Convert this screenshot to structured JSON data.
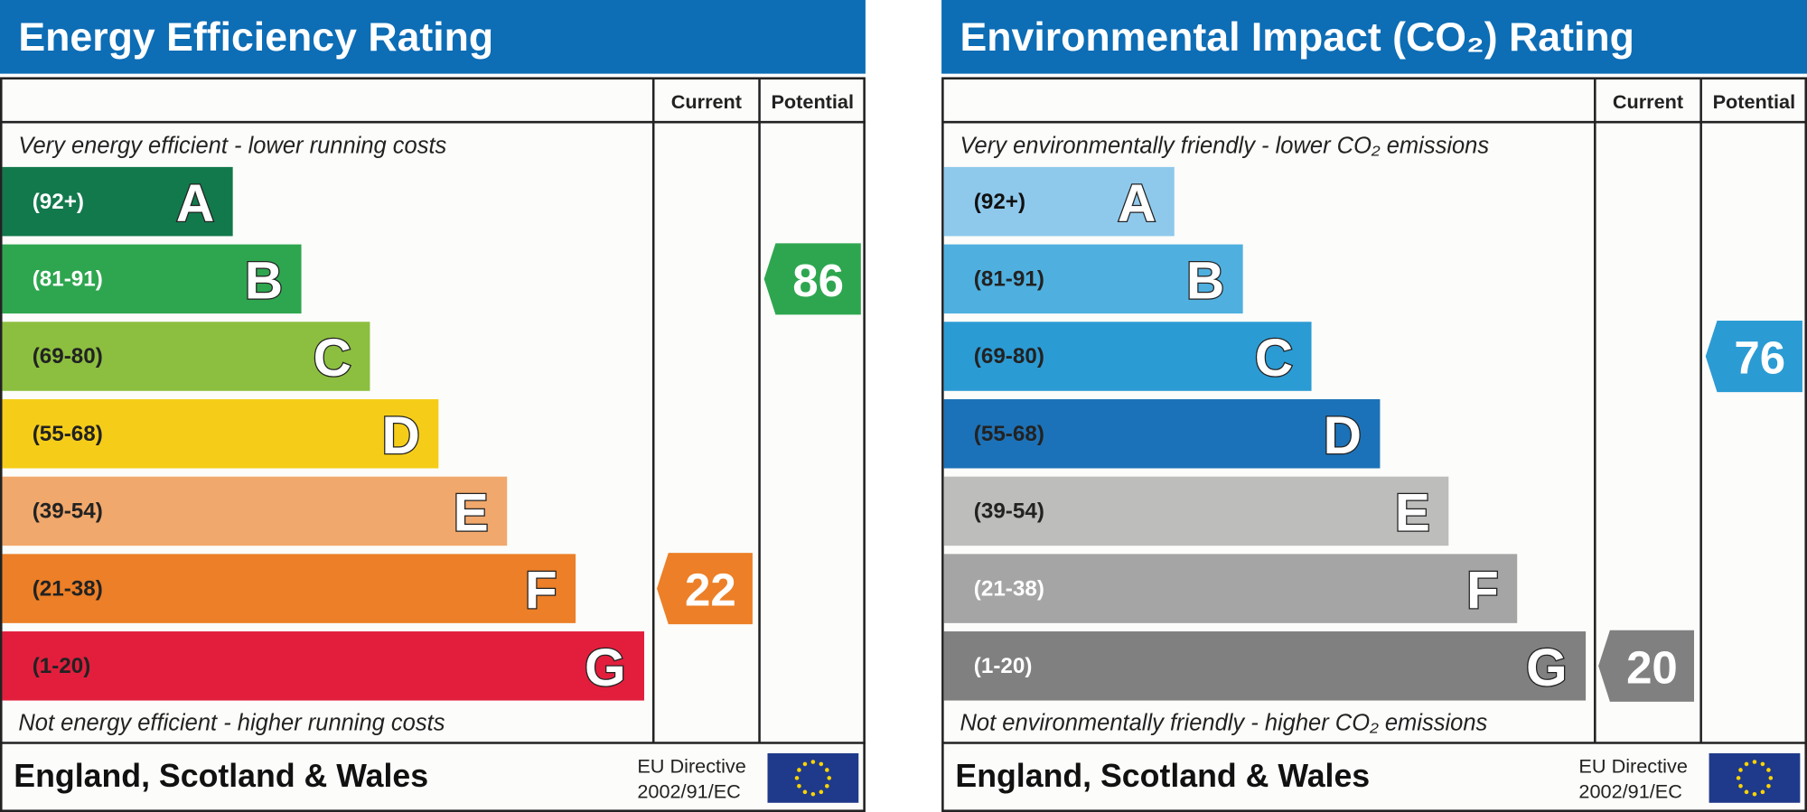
{
  "panels": [
    {
      "title": "Energy Efficiency Rating",
      "columns": [
        "Current",
        "Potential"
      ],
      "top_note": "Very energy efficient - lower running costs",
      "bottom_note": "Not energy efficient - higher running costs",
      "bands": [
        {
          "range": "(92+)",
          "letter": "A",
          "color": "#12794c",
          "text_color": "#ffffff"
        },
        {
          "range": "(81-91)",
          "letter": "B",
          "color": "#2ea64f",
          "text_color": "#ffffff"
        },
        {
          "range": "(69-80)",
          "letter": "C",
          "color": "#8cbf3f",
          "text_color": "#222222"
        },
        {
          "range": "(55-68)",
          "letter": "D",
          "color": "#f5cd19",
          "text_color": "#222222"
        },
        {
          "range": "(39-54)",
          "letter": "E",
          "color": "#f1a86c",
          "text_color": "#222222"
        },
        {
          "range": "(21-38)",
          "letter": "F",
          "color": "#ec7f27",
          "text_color": "#222222"
        },
        {
          "range": "(1-20)",
          "letter": "G",
          "color": "#e31e3d",
          "text_color": "#222222"
        }
      ],
      "current": 22,
      "potential": 86,
      "footer": {
        "region": "England, Scotland & Wales",
        "directive": "EU Directive",
        "code": "2002/91/EC"
      }
    },
    {
      "title": "Environmental Impact (CO₂) Rating",
      "columns": [
        "Current",
        "Potential"
      ],
      "top_note": "Very environmentally friendly - lower CO₂ emissions",
      "bottom_note": "Not environmentally friendly - higher CO₂ emissions",
      "bands": [
        {
          "range": "(92+)",
          "letter": "A",
          "color": "#8ec9ec",
          "text_color": "#111111"
        },
        {
          "range": "(81-91)",
          "letter": "B",
          "color": "#4fb0e0",
          "text_color": "#222222"
        },
        {
          "range": "(69-80)",
          "letter": "C",
          "color": "#2b9bd4",
          "text_color": "#222222"
        },
        {
          "range": "(55-68)",
          "letter": "D",
          "color": "#1c72b8",
          "text_color": "#222222"
        },
        {
          "range": "(39-54)",
          "letter": "E",
          "color": "#bdbdbb",
          "text_color": "#222222"
        },
        {
          "range": "(21-38)",
          "letter": "F",
          "color": "#a5a5a5",
          "text_color": "#ffffff"
        },
        {
          "range": "(1-20)",
          "letter": "G",
          "color": "#808080",
          "text_color": "#ffffff"
        }
      ],
      "current": 20,
      "potential": 76,
      "footer": {
        "region": "England, Scotland & Wales",
        "directive": "EU Directive",
        "code": "2002/91/EC"
      }
    }
  ]
}
